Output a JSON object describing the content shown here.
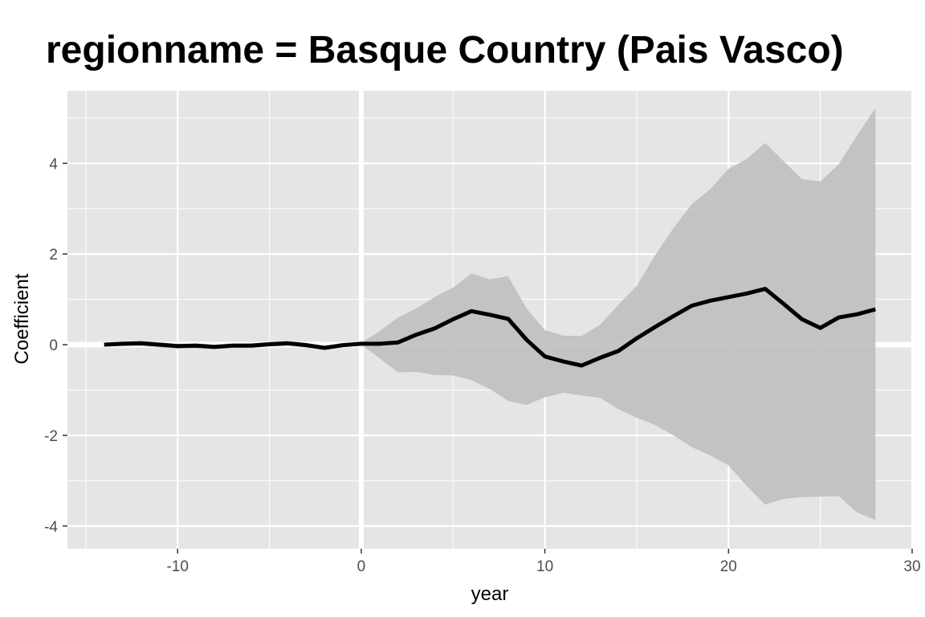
{
  "chart_data": {
    "type": "line",
    "title": "regionname = Basque Country (Pais Vasco)",
    "xlabel": "year",
    "ylabel": "Coefficient",
    "xlim": [
      -16,
      30
    ],
    "ylim": [
      -4.5,
      5.6
    ],
    "x_ticks": [
      -10,
      0,
      10,
      20,
      30
    ],
    "y_ticks": [
      -4,
      -2,
      0,
      2,
      4
    ],
    "grid": true,
    "reference_lines": {
      "x": 0,
      "y": 0
    },
    "colors": {
      "panel": "#e5e5e5",
      "grid": "#ffffff",
      "ribbon": "#bfbfbf",
      "line": "#000000"
    },
    "series": [
      {
        "x": [
          -14,
          -13,
          -12,
          -11,
          -10,
          -9,
          -8,
          -7,
          -6,
          -5,
          -4,
          -3,
          -2,
          -1,
          0,
          1,
          2,
          3,
          4,
          5,
          6,
          7,
          8,
          9,
          10,
          11,
          12,
          13,
          14,
          15,
          16,
          17,
          18,
          19,
          20,
          21,
          22,
          23,
          24,
          25,
          26,
          27,
          28
        ],
        "y": [
          0.0,
          0.02,
          0.03,
          0.0,
          -0.03,
          -0.02,
          -0.05,
          -0.02,
          -0.02,
          0.01,
          0.03,
          -0.01,
          -0.07,
          -0.01,
          0.02,
          0.02,
          0.05,
          0.22,
          0.36,
          0.56,
          0.74,
          0.66,
          0.57,
          0.11,
          -0.26,
          -0.37,
          -0.46,
          -0.29,
          -0.14,
          0.14,
          0.39,
          0.63,
          0.86,
          0.97,
          1.05,
          1.13,
          1.23,
          0.9,
          0.56,
          0.37,
          0.6,
          0.67,
          0.78
        ],
        "lower": [
          -0.04,
          -0.03,
          -0.03,
          -0.06,
          -0.09,
          -0.08,
          -0.09,
          -0.06,
          -0.06,
          -0.04,
          -0.03,
          -0.06,
          -0.11,
          -0.05,
          0.0,
          -0.3,
          -0.61,
          -0.6,
          -0.67,
          -0.68,
          -0.78,
          -0.98,
          -1.24,
          -1.33,
          -1.16,
          -1.06,
          -1.12,
          -1.17,
          -1.42,
          -1.61,
          -1.77,
          -2.0,
          -2.26,
          -2.44,
          -2.66,
          -3.12,
          -3.53,
          -3.4,
          -3.36,
          -3.35,
          -3.34,
          -3.7,
          -3.87
        ],
        "upper": [
          0.04,
          0.06,
          0.08,
          0.05,
          0.02,
          0.03,
          0.0,
          0.03,
          0.03,
          0.06,
          0.08,
          0.04,
          -0.03,
          0.03,
          0.04,
          0.3,
          0.6,
          0.8,
          1.05,
          1.26,
          1.57,
          1.44,
          1.51,
          0.8,
          0.32,
          0.2,
          0.19,
          0.44,
          0.88,
          1.3,
          1.97,
          2.57,
          3.1,
          3.43,
          3.88,
          4.1,
          4.45,
          4.05,
          3.65,
          3.6,
          3.98,
          4.61,
          5.22
        ]
      }
    ]
  }
}
